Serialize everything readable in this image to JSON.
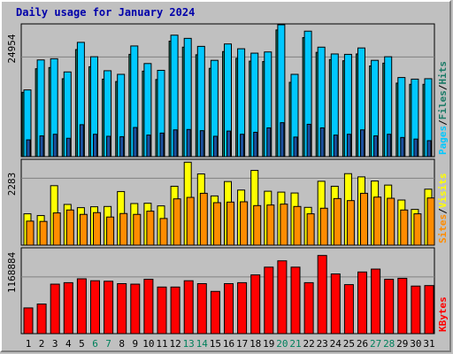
{
  "title": "Daily usage for January 2024",
  "colors": {
    "hits": "#00c8ff",
    "files": "#1a7a66",
    "pages": "#1a50a0",
    "visits": "#ffff00",
    "sites": "#ff8c00",
    "kbytes": "#ff0000",
    "weekend_day_label": "#00805c"
  },
  "days": [
    "1",
    "2",
    "3",
    "4",
    "5",
    "6",
    "7",
    "8",
    "9",
    "10",
    "11",
    "12",
    "13",
    "14",
    "15",
    "16",
    "17",
    "18",
    "19",
    "20",
    "21",
    "22",
    "23",
    "24",
    "25",
    "26",
    "27",
    "28",
    "29",
    "30",
    "31"
  ],
  "weekend_days": [
    6,
    7,
    13,
    14,
    20,
    21,
    27,
    28
  ],
  "panels": {
    "top": {
      "tick": "24954",
      "labels": [
        {
          "text": "Pages",
          "color": "#00c8ff"
        },
        {
          "text": "/",
          "color": "#000000"
        },
        {
          "text": "Files",
          "color": "#1a7a66"
        },
        {
          "text": "/",
          "color": "#000000"
        },
        {
          "text": "Hits",
          "color": "#1a7a66"
        }
      ]
    },
    "middle": {
      "tick": "2283",
      "labels": [
        {
          "text": "Sites",
          "color": "#ff8c00"
        },
        {
          "text": "/",
          "color": "#000000"
        },
        {
          "text": "Visits",
          "color": "#ffff00"
        }
      ]
    },
    "bottom": {
      "tick": "1168884",
      "labels": [
        {
          "text": "KBytes",
          "color": "#ff0000"
        }
      ]
    }
  },
  "chart_data": {
    "type": "bar",
    "title": "Daily usage for January 2024",
    "categories": [
      "1",
      "2",
      "3",
      "4",
      "5",
      "6",
      "7",
      "8",
      "9",
      "10",
      "11",
      "12",
      "13",
      "14",
      "15",
      "16",
      "17",
      "18",
      "19",
      "20",
      "21",
      "22",
      "23",
      "24",
      "25",
      "26",
      "27",
      "28",
      "29",
      "30",
      "31"
    ],
    "panels": [
      {
        "name": "top",
        "tick_value": 24954,
        "ylim": [
          0,
          33000
        ],
        "series": [
          {
            "name": "Hits",
            "values": [
              16700,
              24200,
              24500,
              21200,
              28600,
              25000,
              21500,
              20600,
              27700,
              23300,
              21600,
              30400,
              29600,
              27600,
              24100,
              28200,
              27000,
              25900,
              26200,
              33000,
              20600,
              31400,
              27400,
              25700,
              25600,
              27200,
              24100,
              25000,
              19800,
              19400,
              19500
            ]
          },
          {
            "name": "Files",
            "values": [
              16100,
              22000,
              22300,
              19500,
              26800,
              22500,
              19400,
              18800,
              25600,
              21400,
              19300,
              28900,
              27400,
              25500,
              22100,
              26300,
              24600,
              23900,
              23800,
              31700,
              18600,
              29800,
              26100,
              24300,
              24000,
              25700,
              22700,
              23400,
              18400,
              18100,
              18100
            ]
          },
          {
            "name": "Pages",
            "values": [
              4200,
              5200,
              5600,
              4600,
              8000,
              5600,
              5100,
              5000,
              7300,
              5400,
              5900,
              6700,
              6800,
              6500,
              5100,
              6400,
              5600,
              6100,
              7200,
              8500,
              4900,
              8100,
              7200,
              5400,
              5600,
              6700,
              5200,
              5600,
              4800,
              4400,
              4000
            ]
          }
        ]
      },
      {
        "name": "middle",
        "tick_value": 2283,
        "ylim": [
          0,
          2900
        ],
        "series": [
          {
            "name": "Visits",
            "values": [
              1070,
              1010,
              2030,
              1390,
              1280,
              1310,
              1320,
              1830,
              1420,
              1430,
              1340,
              2010,
              2830,
              2430,
              1680,
              2170,
              1880,
              2550,
              1840,
              1810,
              1780,
              1290,
              2180,
              2010,
              2440,
              2330,
              2190,
              2050,
              1540,
              1220,
              1910
            ]
          },
          {
            "name": "Sites",
            "values": [
              820,
              810,
              1100,
              1200,
              1050,
              1110,
              960,
              1080,
              1050,
              1160,
              910,
              1580,
              1630,
              1770,
              1450,
              1470,
              1480,
              1350,
              1370,
              1400,
              1320,
              1070,
              1260,
              1590,
              1520,
              1770,
              1640,
              1600,
              1200,
              1070,
              1610
            ]
          }
        ]
      },
      {
        "name": "bottom",
        "tick_value": 1168884,
        "ylim": [
          0,
          1750000
        ],
        "series": [
          {
            "name": "KBytes",
            "values": [
              530000,
              610000,
              1020000,
              1050000,
              1130000,
              1090000,
              1080000,
              1030000,
              1020000,
              1120000,
              960000,
              960000,
              1090000,
              1030000,
              870000,
              1030000,
              1050000,
              1210000,
              1370000,
              1500000,
              1370000,
              1050000,
              1610000,
              1230000,
              1010000,
              1270000,
              1330000,
              1120000,
              1140000,
              980000,
              990000
            ]
          }
        ]
      }
    ]
  }
}
